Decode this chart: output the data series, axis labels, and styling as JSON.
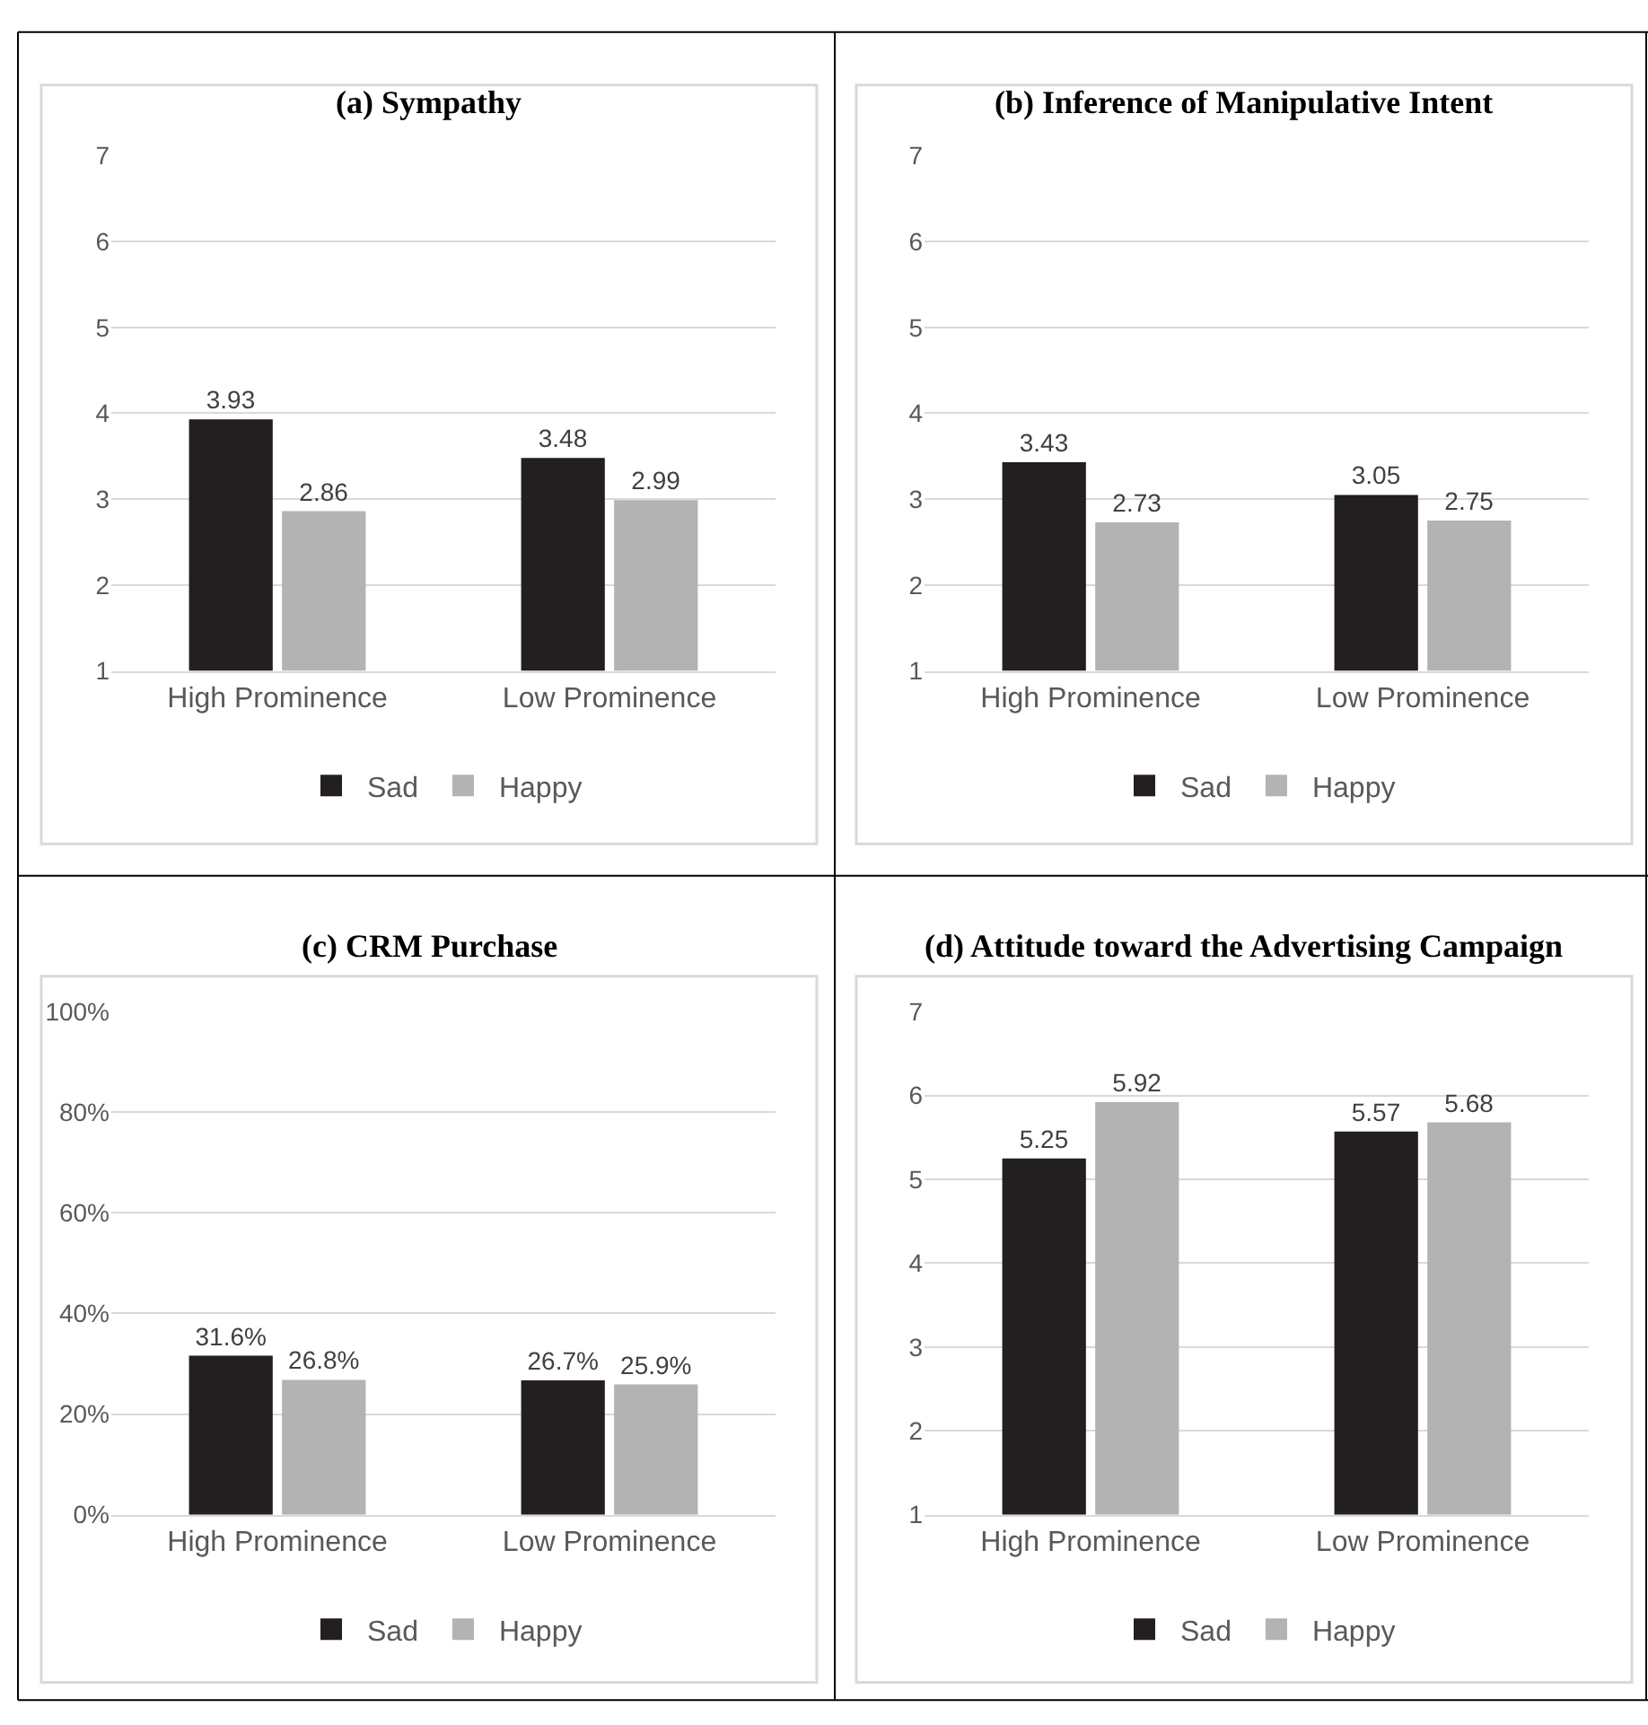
{
  "chart_data": [
    {
      "type": "bar",
      "title": "(a) Sympathy",
      "categories": [
        "High Prominence",
        "Low Prominence"
      ],
      "series": [
        {
          "name": "Sad",
          "color": "#231f20",
          "values": [
            3.93,
            3.48
          ]
        },
        {
          "name": "Happy",
          "color": "#b3b3b3",
          "values": [
            2.86,
            2.99
          ]
        }
      ],
      "ylim": [
        1,
        7
      ],
      "yticks": [
        1,
        2,
        3,
        4,
        5,
        6,
        7
      ],
      "grid": "y",
      "legend": "bottom",
      "data_labels": true
    },
    {
      "type": "bar",
      "title": "(b) Inference of Manipulative Intent",
      "categories": [
        "High Prominence",
        "Low Prominence"
      ],
      "series": [
        {
          "name": "Sad",
          "color": "#231f20",
          "values": [
            3.43,
            3.05
          ]
        },
        {
          "name": "Happy",
          "color": "#b3b3b3",
          "values": [
            2.73,
            2.75
          ]
        }
      ],
      "ylim": [
        1,
        7
      ],
      "yticks": [
        1,
        2,
        3,
        4,
        5,
        6,
        7
      ],
      "grid": "y",
      "legend": "bottom",
      "data_labels": true
    },
    {
      "type": "bar",
      "title": "(c) CRM Purchase",
      "categories": [
        "High Prominence",
        "Low Prominence"
      ],
      "series": [
        {
          "name": "Sad",
          "color": "#231f20",
          "values": [
            31.6,
            26.7
          ],
          "value_labels": [
            "31.6%",
            "26.7%"
          ]
        },
        {
          "name": "Happy",
          "color": "#b3b3b3",
          "values": [
            26.8,
            25.9
          ],
          "value_labels": [
            "26.8%",
            "25.9%"
          ]
        }
      ],
      "ylim": [
        0,
        100
      ],
      "yticks": [
        {
          "value": 0,
          "label": "0%"
        },
        {
          "value": 20,
          "label": "20%"
        },
        {
          "value": 40,
          "label": "40%"
        },
        {
          "value": 60,
          "label": "60%"
        },
        {
          "value": 80,
          "label": "80%"
        },
        {
          "value": 100,
          "label": "100%"
        }
      ],
      "grid": "y",
      "legend": "bottom"
    },
    {
      "type": "bar",
      "title": "(d) Attitude toward the Advertising Campaign",
      "categories": [
        "High Prominence",
        "Low Prominence"
      ],
      "series": [
        {
          "name": "Sad",
          "color": "#231f20",
          "values": [
            5.25,
            5.57
          ]
        },
        {
          "name": "Happy",
          "color": "#b3b3b3",
          "values": [
            5.92,
            5.68
          ]
        }
      ],
      "ylim": [
        1,
        7
      ],
      "yticks": [
        1,
        2,
        3,
        4,
        5,
        6,
        7
      ],
      "grid": "y",
      "legend": "bottom",
      "data_labels": true
    }
  ]
}
